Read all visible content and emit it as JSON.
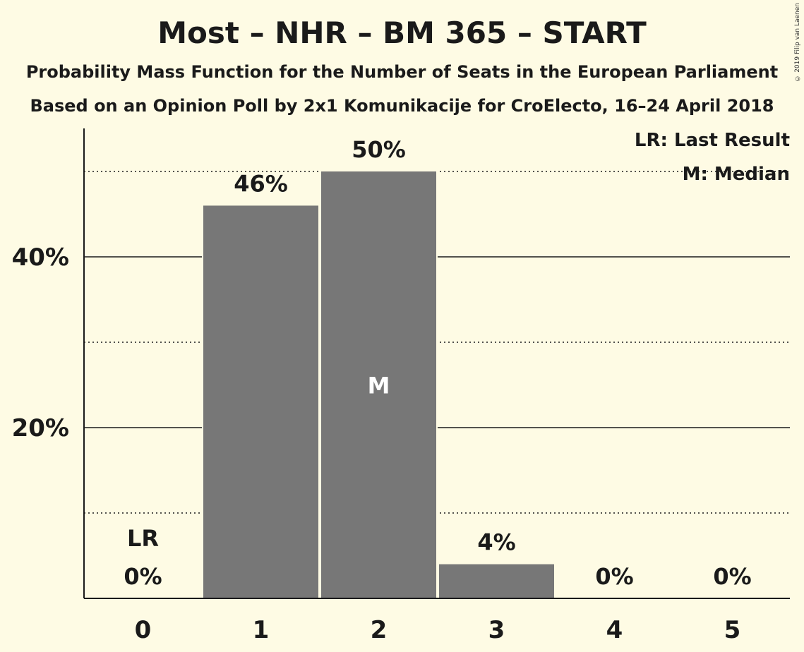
{
  "copyright": "© 2019 Filip van Laenen",
  "colors": {
    "background": "#fefbe4",
    "bar": "#777777"
  },
  "chart_data": {
    "type": "bar",
    "title": "Most – NHR – BM 365 – START",
    "subtitle_1": "Probability Mass Function for the Number of Seats in the European Parliament",
    "subtitle_2": "Based on an Opinion Poll by 2x1 Komunikacije for CroElecto, 16–24 April 2018",
    "categories": [
      "0",
      "1",
      "2",
      "3",
      "4",
      "5"
    ],
    "values": [
      0,
      46,
      50,
      4,
      0,
      0
    ],
    "value_labels": [
      "0%",
      "46%",
      "50%",
      "4%",
      "0%",
      "0%"
    ],
    "ylim": [
      0,
      55
    ],
    "major_ticks": [
      20,
      40
    ],
    "major_tick_labels": [
      "20%",
      "40%"
    ],
    "minor_gridlines": [
      10,
      30,
      50
    ],
    "last_result_index": 0,
    "last_result_label": "LR",
    "median_index": 2,
    "median_label": "M",
    "legend": {
      "lr": "LR: Last Result",
      "median": "M: Median"
    }
  }
}
